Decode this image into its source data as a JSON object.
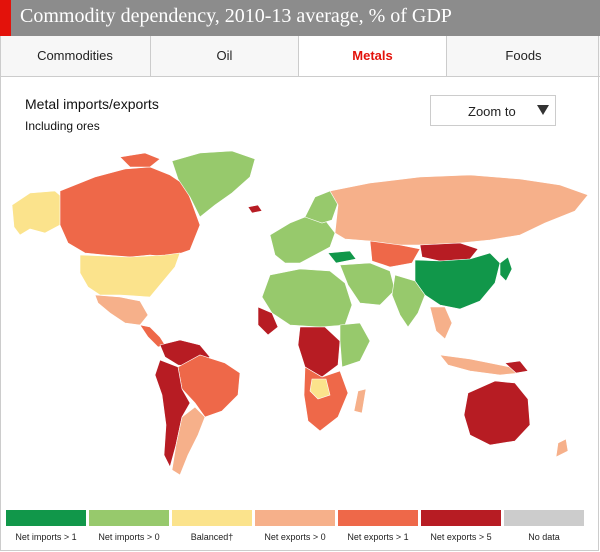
{
  "title": "Commodity dependency, 2010-13 average, % of GDP",
  "tabs": [
    {
      "label": "Commodities",
      "active": false
    },
    {
      "label": "Oil",
      "active": false
    },
    {
      "label": "Metals",
      "active": true
    },
    {
      "label": "Foods",
      "active": false
    }
  ],
  "map": {
    "heading": "Metal imports/exports",
    "subheading": "Including ores",
    "zoom_label": "Zoom to"
  },
  "legend": [
    {
      "label": "Net imports > 1",
      "color": "#11974a"
    },
    {
      "label": "Net imports > 0",
      "color": "#97c96c"
    },
    {
      "label": "Balanced†",
      "color": "#fbe38c"
    },
    {
      "label": "Net exports > 0",
      "color": "#f6b08a"
    },
    {
      "label": "Net exports > 1",
      "color": "#ee6849"
    },
    {
      "label": "Net exports > 5",
      "color": "#b71c23"
    },
    {
      "label": "No data",
      "color": "#cccccc"
    }
  ]
}
